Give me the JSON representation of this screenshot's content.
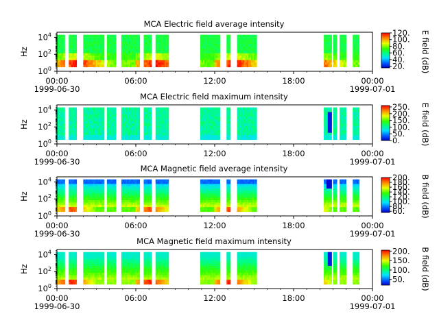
{
  "chart_data": [
    {
      "type": "heatmap",
      "title": "MCA  Electric field average intensity",
      "ylabel": "Hz",
      "yticks": [
        "10",
        "10",
        "10"
      ],
      "yexp": [
        "0",
        "2",
        "4"
      ],
      "xticks": [
        "00:00",
        "06:00",
        "12:00",
        "18:00",
        "00:00"
      ],
      "xdates": [
        "1999-06-30",
        "",
        "",
        "",
        "1999-07-01"
      ],
      "colorbar": {
        "label": "E field (dB)",
        "range": [
          15,
          120
        ],
        "ticks": [
          "120.",
          "100.",
          "80.",
          "60.",
          "40.",
          "20."
        ],
        "tick_values": [
          120,
          100,
          80,
          60,
          40,
          20
        ]
      },
      "profile": "e_avg"
    },
    {
      "type": "heatmap",
      "title": "MCA  Electric field maximum intensity",
      "ylabel": "Hz",
      "yticks": [
        "10",
        "10",
        "10"
      ],
      "yexp": [
        "0",
        "2",
        "4"
      ],
      "xticks": [
        "00:00",
        "06:00",
        "12:00",
        "18:00",
        "00:00"
      ],
      "xdates": [
        "1999-06-30",
        "",
        "",
        "",
        "1999-07-01"
      ],
      "colorbar": {
        "label": "E field (dB)",
        "range": [
          0,
          260
        ],
        "ticks": [
          "250.",
          "200.",
          "150.",
          "100.",
          "50.",
          "0."
        ],
        "tick_values": [
          250,
          200,
          150,
          100,
          50,
          0
        ]
      },
      "profile": "e_max"
    },
    {
      "type": "heatmap",
      "title": "MCA  Magnetic field average intensity",
      "ylabel": "Hz",
      "yticks": [
        "10",
        "10",
        "10"
      ],
      "yexp": [
        "0",
        "2",
        "4"
      ],
      "xticks": [
        "00:00",
        "06:00",
        "12:00",
        "18:00",
        "00:00"
      ],
      "xdates": [
        "1999-06-30",
        "",
        "",
        "",
        "1999-07-01"
      ],
      "colorbar": {
        "label": "B field (dB)",
        "range": [
          55,
          200
        ],
        "ticks": [
          "200.",
          "180.",
          "160.",
          "140.",
          "120.",
          "100.",
          "80.",
          "60."
        ],
        "tick_values": [
          200,
          180,
          160,
          140,
          120,
          100,
          80,
          60
        ]
      },
      "profile": "b_avg"
    },
    {
      "type": "heatmap",
      "title": "MCA  Magnetic field maximum intensity",
      "ylabel": "Hz",
      "yticks": [
        "10",
        "10",
        "10"
      ],
      "yexp": [
        "0",
        "2",
        "4"
      ],
      "xticks": [
        "00:00",
        "06:00",
        "12:00",
        "18:00",
        "00:00"
      ],
      "xdates": [
        "1999-06-30",
        "",
        "",
        "",
        "1999-07-01"
      ],
      "colorbar": {
        "label": "B field (dB)",
        "range": [
          20,
          205
        ],
        "ticks": [
          "200.",
          "150.",
          "100.",
          "50."
        ],
        "tick_values": [
          200,
          150,
          100,
          50
        ]
      },
      "profile": "b_max"
    }
  ],
  "shared": {
    "x_range_hours": [
      0,
      24
    ],
    "y_range_log10_hz": [
      0,
      4.6
    ],
    "data_y_range_log10_hz": [
      0.5,
      4.3
    ],
    "data_intervals_hours": [
      [
        -0.1,
        0.6
      ],
      [
        0.9,
        1.5
      ],
      [
        2.0,
        3.6
      ],
      [
        3.8,
        4.5
      ],
      [
        4.9,
        6.3
      ],
      [
        6.6,
        7.2
      ],
      [
        7.5,
        8.5
      ],
      [
        10.9,
        12.4
      ],
      [
        12.9,
        13.2
      ],
      [
        13.7,
        15.2
      ],
      [
        20.3,
        20.9
      ],
      [
        21.0,
        21.3
      ],
      [
        21.5,
        22.0
      ],
      [
        22.5,
        23.0
      ]
    ],
    "colormap": "jet-like"
  }
}
